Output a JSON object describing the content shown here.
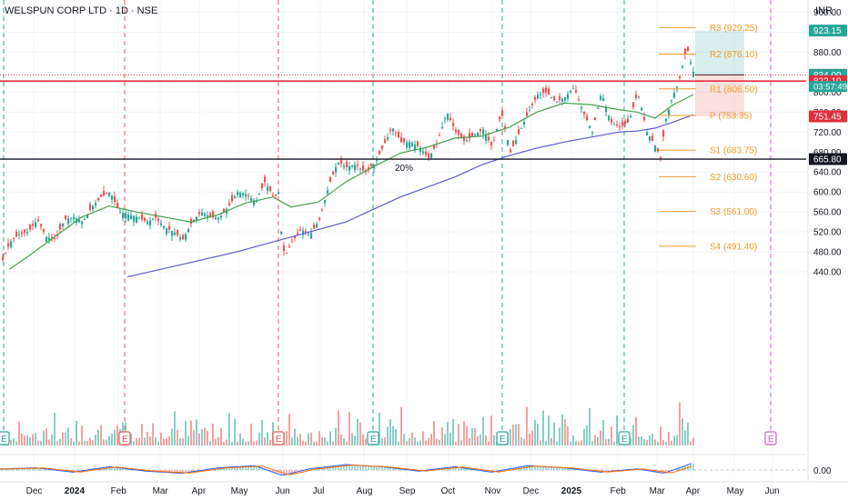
{
  "header": {
    "symbol_title": "WELSPUN CORP LTD · 1D · NSE",
    "currency": "INR"
  },
  "colors": {
    "up": "#26a69a",
    "down": "#ef5350",
    "sma_fast": "#43a047",
    "sma_slow": "#5b5bd6",
    "pivot": "#f59b28",
    "resistance_line": "#e0303d",
    "support_line": "#131722",
    "earnings": "#26a69a",
    "dividend": "#ef5350",
    "future_event": "#d35bd8"
  },
  "chart_data": {
    "type": "candlestick",
    "y_scale": {
      "min": 420,
      "max": 960,
      "tick_step": 40
    },
    "y_ticks": [
      "960.00",
      "920.00",
      "880.00",
      "840.00",
      "800.00",
      "760.00",
      "720.00",
      "680.00",
      "640.00",
      "600.00",
      "560.00",
      "520.00",
      "480.00",
      "440.00"
    ],
    "x_ticks": [
      "Dec",
      "2024",
      "Feb",
      "Mar",
      "Apr",
      "May",
      "Jun",
      "Jul",
      "Aug",
      "Sep",
      "Oct",
      "Nov",
      "Dec",
      "2025",
      "Feb",
      "Mar",
      "Apr",
      "May",
      "Jun"
    ],
    "close_price": "834.00",
    "countdown": "03:57:49",
    "series_anchors": {
      "price": [
        [
          0,
          455
        ],
        [
          10,
          500
        ],
        [
          20,
          515
        ],
        [
          30,
          520
        ],
        [
          40,
          545
        ],
        [
          50,
          510
        ],
        [
          60,
          505
        ],
        [
          70,
          545
        ],
        [
          80,
          550
        ],
        [
          90,
          540
        ],
        [
          100,
          570
        ],
        [
          110,
          590
        ],
        [
          120,
          600
        ],
        [
          130,
          560
        ],
        [
          140,
          555
        ],
        [
          150,
          550
        ],
        [
          160,
          540
        ],
        [
          170,
          548
        ],
        [
          180,
          530
        ],
        [
          190,
          520
        ],
        [
          200,
          505
        ],
        [
          210,
          540
        ],
        [
          220,
          560
        ],
        [
          230,
          550
        ],
        [
          240,
          548
        ],
        [
          250,
          570
        ],
        [
          260,
          600
        ],
        [
          270,
          595
        ],
        [
          280,
          580
        ],
        [
          290,
          620
        ],
        [
          300,
          590
        ],
        [
          305,
          600
        ],
        [
          308,
          520
        ],
        [
          312,
          470
        ],
        [
          320,
          500
        ],
        [
          330,
          525
        ],
        [
          340,
          515
        ],
        [
          350,
          545
        ],
        [
          360,
          610
        ],
        [
          370,
          660
        ],
        [
          380,
          650
        ],
        [
          390,
          655
        ],
        [
          400,
          640
        ],
        [
          410,
          655
        ],
        [
          420,
          690
        ],
        [
          430,
          730
        ],
        [
          440,
          700
        ],
        [
          450,
          700
        ],
        [
          460,
          690
        ],
        [
          470,
          668
        ],
        [
          480,
          700
        ],
        [
          490,
          760
        ],
        [
          500,
          720
        ],
        [
          510,
          700
        ],
        [
          520,
          715
        ],
        [
          530,
          725
        ],
        [
          540,
          690
        ],
        [
          550,
          760
        ],
        [
          560,
          680
        ],
        [
          570,
          720
        ],
        [
          580,
          760
        ],
        [
          590,
          795
        ],
        [
          600,
          800
        ],
        [
          610,
          780
        ],
        [
          620,
          790
        ],
        [
          630,
          810
        ],
        [
          640,
          760
        ],
        [
          650,
          720
        ],
        [
          660,
          800
        ],
        [
          670,
          740
        ],
        [
          680,
          730
        ],
        [
          690,
          740
        ],
        [
          700,
          800
        ],
        [
          710,
          720
        ],
        [
          720,
          690
        ],
        [
          725,
          668
        ],
        [
          730,
          740
        ],
        [
          738,
          790
        ],
        [
          745,
          820
        ],
        [
          750,
          860
        ],
        [
          754,
          890
        ],
        [
          758,
          860
        ],
        [
          762,
          834
        ]
      ],
      "sma_fast": [
        [
          10,
          445
        ],
        [
          30,
          470
        ],
        [
          60,
          510
        ],
        [
          90,
          550
        ],
        [
          120,
          572
        ],
        [
          150,
          560
        ],
        [
          180,
          550
        ],
        [
          210,
          540
        ],
        [
          240,
          555
        ],
        [
          270,
          578
        ],
        [
          300,
          590
        ],
        [
          320,
          570
        ],
        [
          350,
          580
        ],
        [
          380,
          620
        ],
        [
          410,
          650
        ],
        [
          440,
          678
        ],
        [
          470,
          690
        ],
        [
          500,
          708
        ],
        [
          530,
          712
        ],
        [
          560,
          730
        ],
        [
          590,
          760
        ],
        [
          620,
          778
        ],
        [
          650,
          775
        ],
        [
          680,
          765
        ],
        [
          700,
          760
        ],
        [
          720,
          748
        ],
        [
          740,
          775
        ],
        [
          762,
          795
        ]
      ],
      "sma_slow": [
        [
          140,
          430
        ],
        [
          200,
          455
        ],
        [
          260,
          480
        ],
        [
          320,
          510
        ],
        [
          380,
          540
        ],
        [
          410,
          565
        ],
        [
          440,
          590
        ],
        [
          470,
          610
        ],
        [
          500,
          630
        ],
        [
          530,
          655
        ],
        [
          560,
          673
        ],
        [
          590,
          688
        ],
        [
          620,
          700
        ],
        [
          650,
          710
        ],
        [
          680,
          720
        ],
        [
          700,
          722
        ],
        [
          720,
          728
        ],
        [
          740,
          740
        ],
        [
          762,
          755
        ]
      ],
      "oscillator": [
        [
          0,
          0.1
        ],
        [
          40,
          0.2
        ],
        [
          80,
          -0.2
        ],
        [
          120,
          0.3
        ],
        [
          160,
          -0.1
        ],
        [
          200,
          -0.3
        ],
        [
          240,
          0.2
        ],
        [
          280,
          0.4
        ],
        [
          310,
          -0.5
        ],
        [
          340,
          0.1
        ],
        [
          380,
          0.5
        ],
        [
          420,
          0.3
        ],
        [
          460,
          -0.1
        ],
        [
          500,
          0.3
        ],
        [
          540,
          -0.2
        ],
        [
          580,
          0.4
        ],
        [
          620,
          0.2
        ],
        [
          660,
          -0.2
        ],
        [
          700,
          0.1
        ],
        [
          730,
          -0.3
        ],
        [
          760,
          0.6
        ]
      ]
    },
    "pivots": [
      {
        "name": "R3",
        "label": "R3 (929.25)",
        "value": 929.25
      },
      {
        "name": "R2",
        "label": "R2 (876.10)",
        "value": 876.1
      },
      {
        "name": "R1",
        "label": "R1 (806.50)",
        "value": 806.5
      },
      {
        "name": "P",
        "label": "P (753.35)",
        "value": 753.35
      },
      {
        "name": "S1",
        "label": "S1 (683.75)",
        "value": 683.75
      },
      {
        "name": "S2",
        "label": "S2 (630.60)",
        "value": 630.6
      },
      {
        "name": "S3",
        "label": "S3 (561.00)",
        "value": 561.0
      },
      {
        "name": "S4",
        "label": "S4 (491.40)",
        "value": 491.4
      }
    ],
    "price_tags": [
      {
        "name": "target",
        "label": "923.15",
        "value": 923.15,
        "bg": "#26a69a"
      },
      {
        "name": "crosshair",
        "label": "834.50",
        "value": 834.5,
        "bg": "#131722"
      },
      {
        "name": "last",
        "label": "834.00",
        "value": 834.0,
        "bg": "#26a69a"
      },
      {
        "name": "resistance",
        "label": "822.10",
        "value": 822.1,
        "bg": "#e0303d"
      },
      {
        "name": "stop",
        "label": "751.45",
        "value": 751.45,
        "bg": "#e0303d"
      },
      {
        "name": "support",
        "label": "665.80",
        "value": 665.8,
        "bg": "#131722"
      }
    ],
    "horizontal_lines": {
      "resistance": 822.1,
      "support": 665.8,
      "dotted": 834.5
    },
    "position_tool": {
      "entry": 834.5,
      "target": 923.15,
      "stop": 751.45
    },
    "annotation": "20%",
    "oscillator_label": "0.00"
  },
  "events": [
    {
      "label": "E",
      "type": "earnings"
    },
    {
      "label": "E",
      "type": "dividend"
    },
    {
      "label": "E",
      "type": "dividend"
    },
    {
      "label": "E",
      "type": "earnings"
    },
    {
      "label": "E",
      "type": "earnings"
    },
    {
      "label": "E",
      "type": "earnings"
    },
    {
      "label": "E",
      "type": "future"
    }
  ]
}
